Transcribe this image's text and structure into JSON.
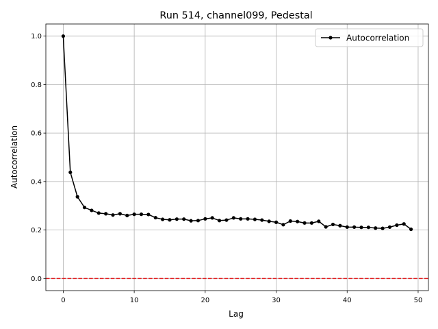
{
  "chart_data": {
    "type": "line",
    "title": "Run 514, channel099, Pedestal",
    "xlabel": "Lag",
    "ylabel": "Autocorrelation",
    "xlim": [
      -2.45,
      51.45
    ],
    "ylim": [
      -0.05,
      1.05
    ],
    "xticks": [
      0,
      10,
      20,
      30,
      40,
      50
    ],
    "xtick_labels": [
      "0",
      "10",
      "20",
      "30",
      "40",
      "50"
    ],
    "yticks": [
      0.0,
      0.2,
      0.4,
      0.6,
      0.8,
      1.0
    ],
    "ytick_labels": [
      "0.0",
      "0.2",
      "0.4",
      "0.6",
      "0.8",
      "1.0"
    ],
    "grid": true,
    "legend_position": "upper right",
    "series": [
      {
        "name": "Autocorrelation",
        "color": "#000000",
        "marker": "circle",
        "x": [
          0,
          1,
          2,
          3,
          4,
          5,
          6,
          7,
          8,
          9,
          10,
          11,
          12,
          13,
          14,
          15,
          16,
          17,
          18,
          19,
          20,
          21,
          22,
          23,
          24,
          25,
          26,
          27,
          28,
          29,
          30,
          31,
          32,
          33,
          34,
          35,
          36,
          37,
          38,
          39,
          40,
          41,
          42,
          43,
          44,
          45,
          46,
          47,
          48,
          49
        ],
        "y": [
          1.0,
          0.438,
          0.337,
          0.293,
          0.281,
          0.27,
          0.267,
          0.262,
          0.267,
          0.26,
          0.265,
          0.265,
          0.264,
          0.251,
          0.244,
          0.242,
          0.245,
          0.245,
          0.238,
          0.239,
          0.246,
          0.25,
          0.239,
          0.241,
          0.25,
          0.246,
          0.246,
          0.244,
          0.241,
          0.236,
          0.232,
          0.222,
          0.237,
          0.235,
          0.229,
          0.229,
          0.236,
          0.213,
          0.223,
          0.218,
          0.212,
          0.212,
          0.211,
          0.211,
          0.208,
          0.207,
          0.212,
          0.22,
          0.225,
          0.203
        ]
      }
    ],
    "reference_line": {
      "y": 0.0,
      "color": "#e41a1c",
      "style": "dashed"
    }
  }
}
